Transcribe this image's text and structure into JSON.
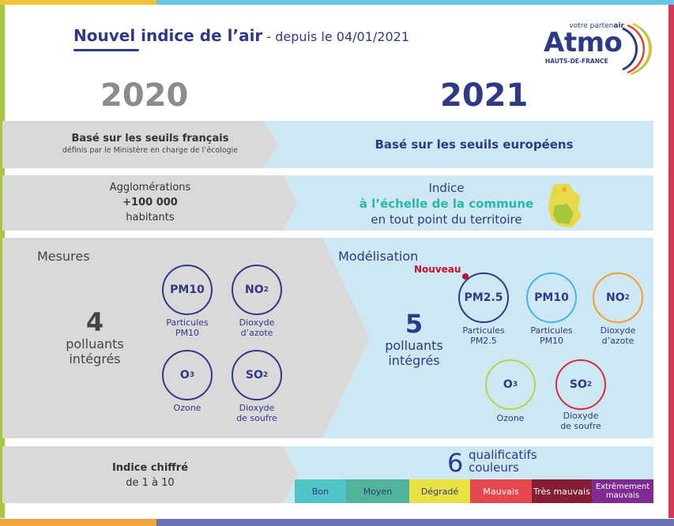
{
  "header": {
    "title_main": "Nouvel indice de l’air",
    "title_sub": " - depuis le 04/01/2021"
  },
  "logo": {
    "tag_prefix": "votre parten",
    "tag_suffix": "air",
    "word": "Atmo",
    "region": "HAUTS-DE-FRANCE"
  },
  "years": {
    "left": "2020",
    "right": "2021"
  },
  "row1": {
    "left_title": "Basé sur les seuils français",
    "left_sub": "définis par le Ministère en charge de l’écologie",
    "right": "Basé sur les seuils européens"
  },
  "row2": {
    "left_line1": "Agglomérations",
    "left_line2": "+100 000",
    "left_line3": "habitants",
    "right_line1": "Indice",
    "right_line2": "à l’échelle de la commune",
    "right_line3": "en tout point du territoire"
  },
  "row3": {
    "left_heading": "Mesures",
    "left_count": "4",
    "left_count_label1": "polluants",
    "left_count_label2": "intégrés",
    "left_pollutants": [
      {
        "symbol": "PM10",
        "label1": "Particules",
        "label2": "PM10"
      },
      {
        "symbol": "NO",
        "sub": "2",
        "label1": "Dioxyde",
        "label2": "d’azote"
      },
      {
        "symbol": "O",
        "sub": "3",
        "label1": "Ozone",
        "label2": ""
      },
      {
        "symbol": "SO",
        "sub": "2",
        "label1": "Dioxyde",
        "label2": "de soufre"
      }
    ],
    "right_heading": "Modélisation",
    "new_badge": "Nouveau",
    "right_count": "5",
    "right_count_label1": "polluants",
    "right_count_label2": "intégrés",
    "right_pollutants": [
      {
        "symbol": "PM2.5",
        "label1": "Particules",
        "label2": "PM2.5",
        "color": "#2e3a86"
      },
      {
        "symbol": "PM10",
        "label1": "Particules",
        "label2": "PM10",
        "color": "#3fb7e8"
      },
      {
        "symbol": "NO",
        "sub": "2",
        "label1": "Dioxyde",
        "label2": "d’azote",
        "color": "#f0a030"
      },
      {
        "symbol": "O",
        "sub": "3",
        "label1": "Ozone",
        "label2": "",
        "color": "#b8d53e"
      },
      {
        "symbol": "SO",
        "sub": "2",
        "label1": "Dioxyde",
        "label2": "de soufre",
        "color": "#d72a3c"
      }
    ]
  },
  "row4": {
    "left_line1": "Indice chiffré",
    "left_line2": "de 1 à 10",
    "right_count": "6",
    "right_label1": "qualificatifs",
    "right_label2": "couleurs",
    "categories": [
      {
        "label": "Bon",
        "color": "#4fc5c8"
      },
      {
        "label": "Moyen",
        "color": "#52b39b"
      },
      {
        "label": "Dégradé",
        "color": "#eae142"
      },
      {
        "label": "Mauvais",
        "color": "#e7474e"
      },
      {
        "label": "Très mauvais",
        "color": "#861e33"
      },
      {
        "label": "Extrêmement mauvais",
        "color": "#7e2c93"
      }
    ]
  },
  "colors": {
    "navy": "#2e3a86",
    "accent_teal": "#29b8a9",
    "grey_band": "#d9d9d9",
    "blue_band": "#cde8f2"
  }
}
